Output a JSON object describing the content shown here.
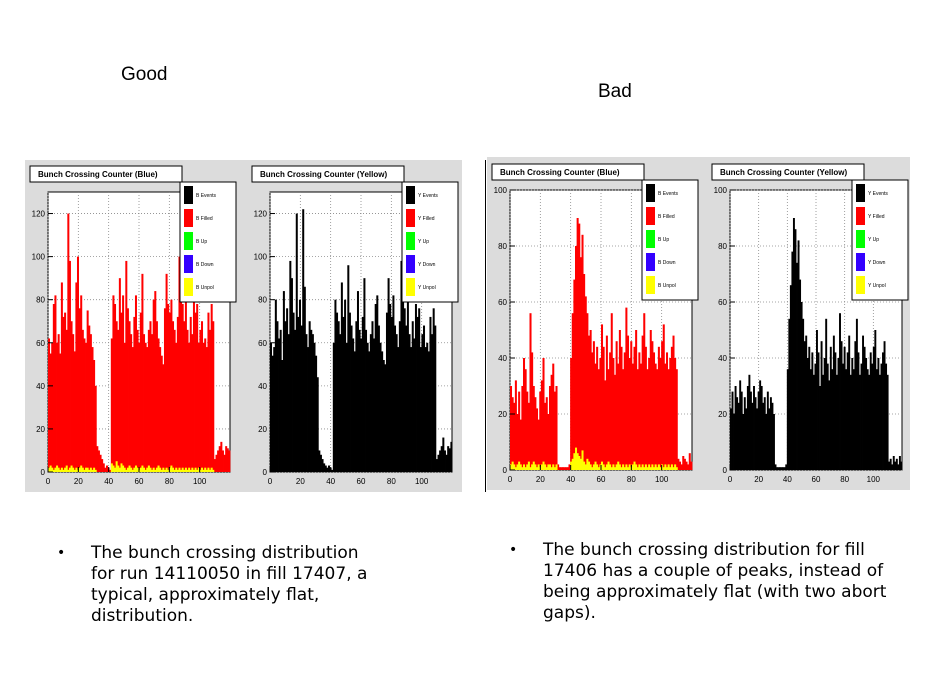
{
  "headings": {
    "good": "Good",
    "bad": "Bad"
  },
  "bullets": {
    "good": "The bunch crossing distribution for run 14110050 in fill 17407, a typical, approximately flat, distribution.",
    "bad": "The bunch crossing distribution for fill 17406 has a couple of peaks, instead of being approximately flat (with two abort gaps)."
  },
  "bullet_glyph": "•",
  "colors": {
    "blue_events": "#000000",
    "filled": "#ff0000",
    "up": "#00ff00",
    "down": "#3300ff",
    "unpol": "#ffff00",
    "frame_bg": "#ffffff",
    "panel_bg": "#dcdcdc"
  },
  "chart_data": [
    {
      "type": "bar",
      "title": "Bunch Crossing Counter (Blue)",
      "group": "good",
      "xlim": [
        0,
        120
      ],
      "ylim": [
        0,
        130
      ],
      "xticks": [
        0,
        20,
        40,
        60,
        80,
        100
      ],
      "yticks": [
        0,
        20,
        40,
        60,
        80,
        100,
        120
      ],
      "grid": true,
      "legend_position": "top-right",
      "legend": [
        "B Events",
        "B Filled",
        "B Up",
        "B Down",
        "B Unpol"
      ],
      "legend_colors": [
        "#000000",
        "#ff0000",
        "#00ff00",
        "#3300ff",
        "#ffff00"
      ],
      "series": [
        {
          "name": "B Filled",
          "color": "#ff0000",
          "values": [
            62,
            55,
            60,
            78,
            82,
            60,
            64,
            55,
            88,
            72,
            74,
            66,
            120,
            98,
            70,
            64,
            56,
            88,
            100,
            76,
            82,
            66,
            62,
            60,
            75,
            68,
            64,
            58,
            52,
            40,
            12,
            10,
            8,
            6,
            4,
            2,
            3,
            2,
            1,
            62,
            82,
            78,
            70,
            66,
            90,
            74,
            82,
            60,
            98,
            76,
            70,
            64,
            58,
            72,
            82,
            66,
            60,
            74,
            92,
            64,
            60,
            58,
            66,
            70,
            64,
            80,
            84,
            70,
            62,
            58,
            54,
            50,
            76,
            92,
            78,
            74,
            80,
            70,
            66,
            60,
            72,
            100,
            86,
            78,
            70,
            82,
            66,
            60,
            72,
            64,
            80,
            74,
            78,
            60,
            66,
            70,
            60,
            62,
            58,
            74,
            66,
            78,
            70,
            6,
            8,
            10,
            12,
            14,
            10,
            8,
            12,
            11,
            10
          ]
        },
        {
          "name": "B Unpol",
          "color": "#ffff00",
          "values": [
            2,
            3,
            2,
            1,
            2,
            3,
            2,
            1,
            2,
            1,
            2,
            3,
            1,
            2,
            3,
            2,
            1,
            2,
            1,
            2,
            3,
            2,
            1,
            2,
            2,
            1,
            2,
            1,
            2,
            1,
            0,
            0,
            0,
            0,
            0,
            0,
            0,
            0,
            0,
            4,
            3,
            2,
            5,
            3,
            2,
            4,
            3,
            2,
            1,
            2,
            3,
            2,
            1,
            2,
            3,
            2,
            1,
            2,
            3,
            2,
            1,
            2,
            3,
            2,
            1,
            2,
            1,
            2,
            3,
            2,
            1,
            2,
            1,
            2,
            1,
            2,
            3,
            2,
            1,
            2,
            1,
            2,
            1,
            2,
            1,
            2,
            1,
            2,
            1,
            2,
            1,
            2,
            1,
            2,
            1,
            2,
            1,
            2,
            1,
            2,
            1,
            2,
            1,
            0,
            0,
            0,
            0,
            0,
            0,
            0,
            0,
            0,
            0
          ]
        }
      ]
    },
    {
      "type": "bar",
      "title": "Bunch Crossing Counter (Yellow)",
      "group": "good",
      "xlim": [
        0,
        120
      ],
      "ylim": [
        0,
        130
      ],
      "xticks": [
        0,
        20,
        40,
        60,
        80,
        100
      ],
      "yticks": [
        0,
        20,
        40,
        60,
        80,
        100,
        120
      ],
      "grid": true,
      "legend_position": "top-right",
      "legend": [
        "Y Events",
        "Y Filled",
        "Y Up",
        "Y Down",
        "Y Unpol"
      ],
      "legend_colors": [
        "#000000",
        "#ff0000",
        "#00ff00",
        "#3300ff",
        "#ffff00"
      ],
      "series": [
        {
          "name": "Y Events",
          "color": "#000000",
          "values": [
            60,
            54,
            58,
            80,
            70,
            62,
            66,
            52,
            84,
            70,
            76,
            64,
            98,
            90,
            74,
            66,
            120,
            72,
            80,
            68,
            122,
            86,
            64,
            58,
            70,
            66,
            64,
            60,
            54,
            44,
            10,
            8,
            6,
            4,
            3,
            2,
            3,
            2,
            1,
            60,
            80,
            74,
            70,
            64,
            88,
            72,
            80,
            60,
            96,
            74,
            68,
            62,
            56,
            70,
            84,
            66,
            62,
            72,
            90,
            66,
            60,
            56,
            64,
            70,
            62,
            78,
            82,
            68,
            60,
            56,
            52,
            50,
            74,
            90,
            78,
            72,
            82,
            68,
            64,
            58,
            70,
            98,
            84,
            76,
            68,
            80,
            64,
            58,
            70,
            62,
            78,
            72,
            76,
            58,
            64,
            68,
            58,
            60,
            56,
            72,
            64,
            76,
            68,
            6,
            8,
            10,
            12,
            16,
            10,
            8,
            12,
            11,
            14
          ]
        }
      ]
    },
    {
      "type": "bar",
      "title": "Bunch Crossing Counter (Blue)",
      "group": "bad",
      "xlim": [
        0,
        120
      ],
      "ylim": [
        0,
        100
      ],
      "xticks": [
        0,
        20,
        40,
        60,
        80,
        100
      ],
      "yticks": [
        0,
        20,
        40,
        60,
        80,
        100
      ],
      "grid": true,
      "legend_position": "top-right",
      "legend": [
        "B Events",
        "B Filled",
        "B Up",
        "B Down",
        "B Unpol"
      ],
      "legend_colors": [
        "#000000",
        "#ff0000",
        "#00ff00",
        "#3300ff",
        "#ffff00"
      ],
      "series": [
        {
          "name": "B Filled",
          "color": "#ff0000",
          "values": [
            30,
            26,
            24,
            32,
            20,
            28,
            18,
            30,
            40,
            36,
            28,
            24,
            56,
            42,
            30,
            26,
            22,
            18,
            28,
            32,
            40,
            24,
            26,
            20,
            30,
            34,
            38,
            28,
            30,
            2,
            1,
            1,
            1,
            1,
            1,
            1,
            2,
            40,
            56,
            68,
            80,
            90,
            88,
            76,
            84,
            70,
            62,
            56,
            48,
            50,
            42,
            46,
            38,
            44,
            36,
            40,
            52,
            44,
            32,
            48,
            36,
            42,
            56,
            40,
            34,
            46,
            38,
            50,
            44,
            36,
            42,
            58,
            48,
            40,
            46,
            38,
            44,
            50,
            36,
            42,
            38,
            48,
            56,
            44,
            36,
            40,
            50,
            46,
            42,
            38,
            36,
            44,
            40,
            46,
            52,
            38,
            42,
            36,
            40,
            44,
            48,
            40,
            36,
            4,
            3,
            2,
            5,
            4,
            3,
            2,
            6,
            3
          ]
        },
        {
          "name": "B Unpol",
          "color": "#ffff00",
          "values": [
            2,
            3,
            2,
            1,
            2,
            3,
            2,
            1,
            2,
            1,
            2,
            3,
            1,
            2,
            3,
            2,
            1,
            2,
            1,
            2,
            3,
            2,
            1,
            2,
            2,
            1,
            2,
            1,
            2,
            0,
            0,
            0,
            0,
            0,
            0,
            0,
            0,
            3,
            4,
            6,
            8,
            6,
            5,
            4,
            7,
            3,
            2,
            4,
            3,
            2,
            1,
            2,
            3,
            2,
            1,
            2,
            3,
            2,
            1,
            2,
            3,
            2,
            1,
            2,
            1,
            2,
            3,
            2,
            1,
            2,
            1,
            2,
            1,
            2,
            1,
            2,
            3,
            2,
            1,
            2,
            1,
            2,
            1,
            2,
            1,
            2,
            1,
            2,
            1,
            2,
            1,
            2,
            1,
            2,
            1,
            2,
            1,
            2,
            1,
            2,
            1,
            2,
            1,
            0,
            0,
            0,
            0,
            0,
            0,
            0,
            0,
            0
          ]
        }
      ]
    },
    {
      "type": "bar",
      "title": "Bunch Crossing Counter (Yellow)",
      "group": "bad",
      "xlim": [
        0,
        120
      ],
      "ylim": [
        0,
        100
      ],
      "xticks": [
        0,
        20,
        40,
        60,
        80,
        100
      ],
      "yticks": [
        0,
        20,
        40,
        60,
        80,
        100
      ],
      "grid": true,
      "legend_position": "top-right",
      "legend": [
        "Y Events",
        "Y Filled",
        "Y Up",
        "Y Down",
        "Y Unpol"
      ],
      "legend_colors": [
        "#000000",
        "#ff0000",
        "#00ff00",
        "#3300ff",
        "#ffff00"
      ],
      "series": [
        {
          "name": "Y Events",
          "color": "#000000",
          "values": [
            22,
            28,
            20,
            30,
            26,
            24,
            32,
            28,
            20,
            26,
            22,
            30,
            34,
            28,
            24,
            30,
            26,
            22,
            28,
            32,
            30,
            24,
            26,
            20,
            28,
            22,
            26,
            24,
            20,
            2,
            1,
            1,
            1,
            1,
            1,
            1,
            2,
            36,
            54,
            66,
            78,
            90,
            86,
            74,
            82,
            68,
            60,
            54,
            46,
            48,
            40,
            44,
            36,
            42,
            34,
            38,
            50,
            42,
            30,
            46,
            34,
            40,
            54,
            38,
            32,
            44,
            36,
            48,
            42,
            34,
            40,
            56,
            46,
            38,
            44,
            36,
            42,
            48,
            34,
            40,
            36,
            46,
            54,
            42,
            34,
            38,
            48,
            44,
            40,
            36,
            34,
            42,
            38,
            44,
            50,
            36,
            40,
            34,
            38,
            42,
            46,
            38,
            34,
            3,
            4,
            2,
            5,
            3,
            4,
            2,
            5,
            3
          ]
        }
      ]
    }
  ]
}
